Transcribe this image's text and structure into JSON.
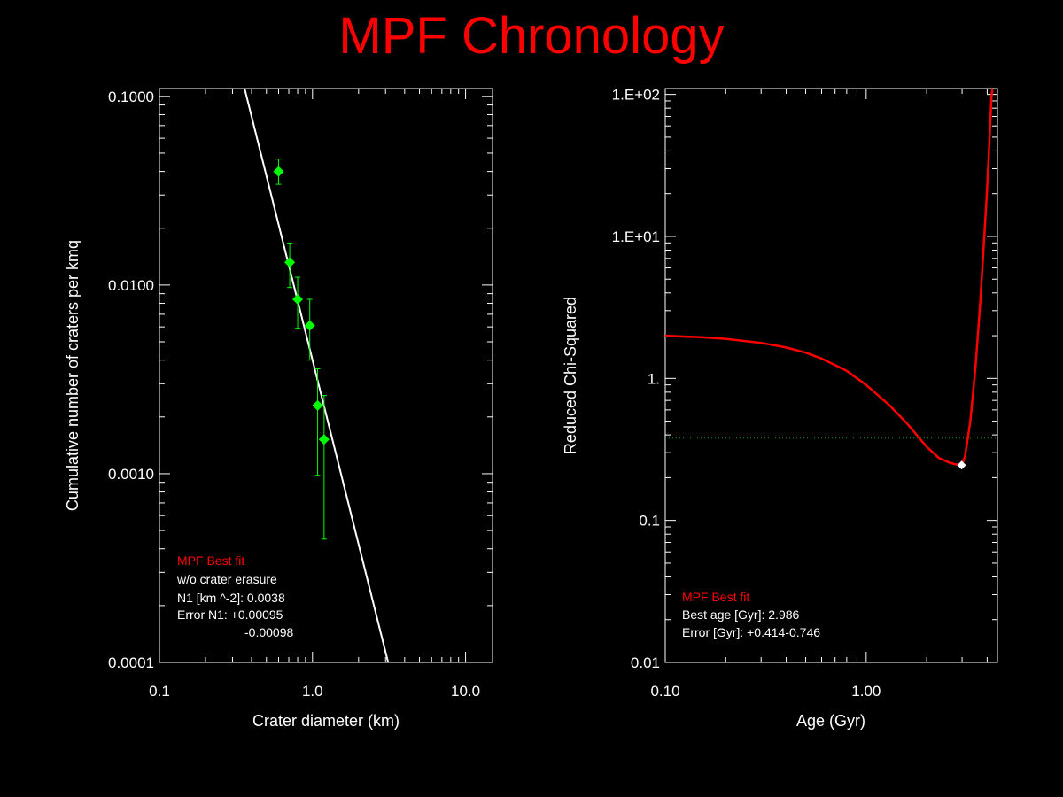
{
  "page": {
    "title": "MPF Chronology"
  },
  "colors": {
    "title": "#ff0000",
    "background": "#000000",
    "axes": "#ffffff",
    "points": "#00ff00",
    "fit_line": "#ffffff",
    "chi_curve": "#ff0000",
    "threshold_line": "#00aa00",
    "best_marker": "#ffffff"
  },
  "chart_data": [
    {
      "type": "scatter",
      "title": "",
      "xlabel": "Crater diameter (km)",
      "ylabel": "Cumulative number of craters per kmq",
      "xscale": "log",
      "yscale": "log",
      "xlim": [
        0.1,
        15
      ],
      "ylim": [
        0.0001,
        0.11
      ],
      "x_ticks": [
        0.1,
        1.0,
        10.0
      ],
      "x_tick_labels": [
        "0.1",
        "1.0",
        "10.0"
      ],
      "y_ticks": [
        0.0001,
        0.001,
        0.01,
        0.1
      ],
      "y_tick_labels": [
        "0.0001",
        "0.0010",
        "0.0100",
        "0.1000"
      ],
      "grid": false,
      "series": [
        {
          "kind": "points_with_errorbars",
          "x": [
            0.6,
            0.71,
            0.8,
            0.96,
            1.08,
            1.19
          ],
          "y": [
            0.04,
            0.0132,
            0.0084,
            0.0061,
            0.0023,
            0.00152
          ],
          "y_err_low": [
            0.0342,
            0.0097,
            0.0059,
            0.004,
            0.00098,
            0.00045
          ],
          "y_err_high": [
            0.0465,
            0.0167,
            0.011,
            0.0084,
            0.0036,
            0.0026
          ]
        },
        {
          "kind": "fit_line",
          "x": [
            0.36,
            3.12
          ],
          "y": [
            0.11,
            0.0001
          ]
        }
      ],
      "annotations": {
        "heading": "MPF Best fit",
        "lines": [
          "w/o crater erasure",
          "N1 [km ^-2]: 0.0038",
          "Error N1: +0.00095",
          "-0.00098"
        ]
      }
    },
    {
      "type": "line",
      "title": "",
      "xlabel": "Age (Gyr)",
      "ylabel": "Reduced Chi-Squared",
      "xscale": "log",
      "yscale": "log",
      "xlim": [
        0.1,
        4.5
      ],
      "ylim": [
        0.01,
        110
      ],
      "x_ticks": [
        0.1,
        1.0
      ],
      "x_tick_labels": [
        "0.10",
        "1.00"
      ],
      "y_ticks": [
        0.01,
        0.1,
        1,
        10,
        100
      ],
      "y_tick_labels": [
        "0.01",
        "0.1",
        "1.",
        "1.E+01",
        "1.E+02"
      ],
      "grid": false,
      "series": [
        {
          "kind": "chi_curve",
          "x": [
            0.1,
            0.15,
            0.2,
            0.3,
            0.4,
            0.5,
            0.6,
            0.8,
            1.0,
            1.3,
            1.6,
            2.0,
            2.3,
            2.6,
            2.8,
            2.986,
            3.1,
            3.3,
            3.5,
            3.7,
            3.9,
            4.0,
            4.1,
            4.15,
            4.2,
            4.25
          ],
          "y": [
            2.0,
            1.95,
            1.9,
            1.78,
            1.65,
            1.52,
            1.38,
            1.13,
            0.9,
            0.65,
            0.48,
            0.33,
            0.275,
            0.255,
            0.248,
            0.245,
            0.28,
            0.5,
            1.2,
            3.5,
            12,
            22,
            45,
            65,
            95,
            130
          ]
        },
        {
          "kind": "threshold_line",
          "y": 0.38
        },
        {
          "kind": "best_point",
          "x": 2.986,
          "y": 0.245
        }
      ],
      "annotations": {
        "heading": "MPF Best fit",
        "lines": [
          "Best age [Gyr]: 2.986",
          "Error [Gyr]: +0.414-0.746"
        ]
      }
    }
  ]
}
